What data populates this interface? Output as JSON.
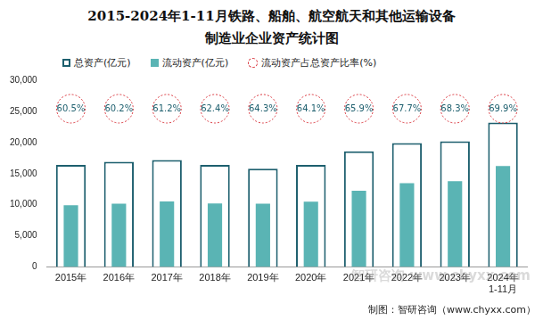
{
  "chart_data": {
    "type": "bar",
    "title": [
      "2015-2024年1-11月铁路、船舶、航空航天和其他运输设备",
      "制造业企业资产统计图"
    ],
    "categories": [
      "2015年",
      "2016年",
      "2017年",
      "2018年",
      "2019年",
      "2020年",
      "2021年",
      "2022年",
      "2023年",
      "2024年\n1-11月"
    ],
    "series": [
      {
        "name": "总资产(亿元)",
        "type": "bar",
        "color": "#1d5f6e",
        "values": [
          16400,
          16900,
          17200,
          16400,
          15800,
          16400,
          18600,
          19900,
          20200,
          23200
        ]
      },
      {
        "name": "流动资产(亿元)",
        "type": "bar",
        "color": "#5ab4b4",
        "values": [
          9920,
          10170,
          10530,
          10230,
          10160,
          10510,
          12260,
          13470,
          13800,
          16220
        ]
      },
      {
        "name": "流动资产占总资产比率(%)",
        "type": "label",
        "color": "#d9363e",
        "values": [
          60.5,
          60.2,
          61.2,
          62.4,
          64.3,
          64.1,
          65.9,
          67.7,
          68.3,
          69.9
        ],
        "value_labels": [
          "60.5%",
          "60.2%",
          "61.2%",
          "62.4%",
          "64.3%",
          "64.1%",
          "65.9%",
          "67.7%",
          "68.3%",
          "69.9%"
        ]
      }
    ],
    "ylim": [
      0,
      30000
    ],
    "yticks": [
      0,
      5000,
      10000,
      15000,
      20000,
      25000,
      30000
    ],
    "grid": false,
    "legend": "top",
    "data_labels": false,
    "watermark": "智研咨询 www.chyxx.com",
    "source": "制图：智研咨询（www.chyxx.com）"
  }
}
